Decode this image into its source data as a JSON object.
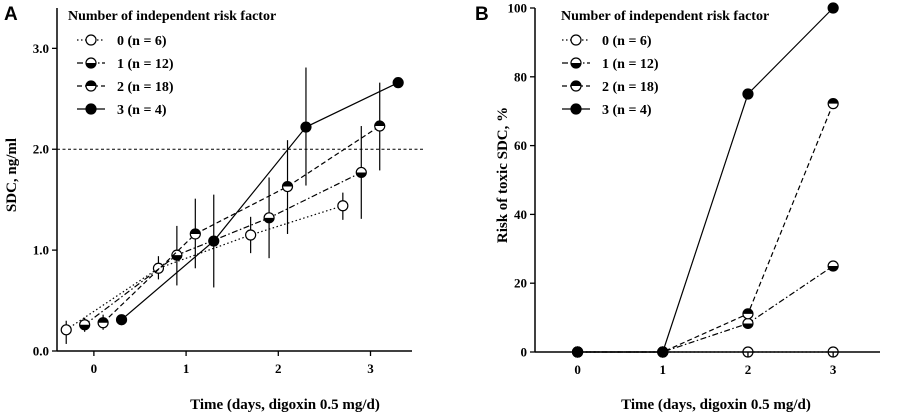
{
  "chart_data": [
    {
      "panel": "A",
      "type": "line",
      "xlabel": "Time (days, digoxin 0.5 mg/d)",
      "ylabel": "SDC, ng/ml",
      "xlim": [
        -0.4,
        3.45
      ],
      "ylim": [
        0,
        3.4
      ],
      "x_ticks": [
        0,
        1,
        2,
        3
      ],
      "y_ticks": [
        0.0,
        1.0,
        2.0,
        3.0
      ],
      "y_tick_labels": [
        "0.0",
        "1.0",
        "2.0",
        "3.0"
      ],
      "reference_line": 2.0,
      "legend_title": "Number of independent risk factor",
      "series": [
        {
          "name": "0 (n = 6)",
          "marker": "open",
          "line": "dotted",
          "x": [
            -0.3,
            0.7,
            1.7,
            2.7
          ],
          "y": [
            0.21,
            0.82,
            1.15,
            1.44
          ],
          "err_low": [
            0.07,
            0.71,
            0.97,
            1.3
          ],
          "err_high": [
            0.3,
            0.94,
            1.33,
            1.57
          ]
        },
        {
          "name": "1 (n = 12)",
          "marker": "half-bottom",
          "line": "dashdot",
          "x": [
            -0.1,
            0.9,
            1.9,
            2.9
          ],
          "y": [
            0.26,
            0.95,
            1.32,
            1.77
          ],
          "err_low": [
            0.19,
            0.65,
            0.92,
            1.31
          ],
          "err_high": [
            0.33,
            1.24,
            1.72,
            2.23
          ]
        },
        {
          "name": "2 (n = 18)",
          "marker": "half-top",
          "line": "dashed",
          "x": [
            0.1,
            1.1,
            2.1,
            3.1
          ],
          "y": [
            0.28,
            1.16,
            1.63,
            2.23
          ],
          "err_low": [
            0.21,
            0.82,
            1.16,
            1.79
          ],
          "err_high": [
            0.36,
            1.51,
            2.09,
            2.66
          ]
        },
        {
          "name": "3 (n = 4)",
          "marker": "filled",
          "line": "solid",
          "x": [
            0.3,
            1.3,
            2.3,
            3.3
          ],
          "y": [
            0.31,
            1.09,
            2.22,
            2.66
          ],
          "err_low": [
            0.26,
            0.63,
            1.64,
            2.66
          ],
          "err_high": [
            0.36,
            1.55,
            2.81,
            2.66
          ]
        }
      ]
    },
    {
      "panel": "B",
      "type": "line",
      "xlabel": "Time (days, digoxin 0.5 mg/d)",
      "ylabel": "Risk of toxic SDC, %",
      "xlim": [
        -0.5,
        3.55
      ],
      "ylim": [
        0,
        100
      ],
      "x_ticks": [
        0,
        1,
        2,
        3
      ],
      "y_ticks": [
        0,
        20,
        40,
        60,
        80,
        100
      ],
      "legend_title": "Number of independent risk factor",
      "series": [
        {
          "name": "0 (n = 6)",
          "marker": "open",
          "line": "dotted",
          "x": [
            0,
            1,
            2,
            3
          ],
          "y": [
            0,
            0,
            0,
            0
          ]
        },
        {
          "name": "1 (n = 12)",
          "marker": "half-bottom",
          "line": "dashdot",
          "x": [
            0,
            1,
            2,
            3
          ],
          "y": [
            0,
            0,
            8.3,
            25
          ]
        },
        {
          "name": "2 (n = 18)",
          "marker": "half-top",
          "line": "dashed",
          "x": [
            0,
            1,
            2,
            3
          ],
          "y": [
            0,
            0,
            11.1,
            72.2
          ]
        },
        {
          "name": "3 (n = 4)",
          "marker": "filled",
          "line": "solid",
          "x": [
            0,
            1,
            2,
            3
          ],
          "y": [
            0,
            0,
            75,
            100
          ]
        }
      ]
    }
  ]
}
